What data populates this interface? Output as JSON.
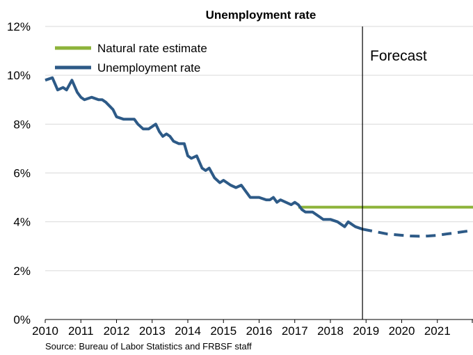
{
  "chart_data": {
    "type": "line",
    "title": "Unemployment rate",
    "source": "Source: Bureau of Labor Statistics and FRBSF staff",
    "annotation": "Forecast",
    "forecast_start": 2018.9,
    "xlim": [
      2010,
      2022
    ],
    "ylim": [
      0,
      12
    ],
    "x_ticks": [
      2010,
      2011,
      2012,
      2013,
      2014,
      2015,
      2016,
      2017,
      2018,
      2019,
      2020,
      2021
    ],
    "x_tick_labels": [
      "2010",
      "2011",
      "2012",
      "2013",
      "2014",
      "2015",
      "2016",
      "2017",
      "2018",
      "2019",
      "2020",
      "2021"
    ],
    "y_ticks": [
      0,
      2,
      4,
      6,
      8,
      10,
      12
    ],
    "y_tick_labels": [
      "0%",
      "2%",
      "4%",
      "6%",
      "8%",
      "10%",
      "12%"
    ],
    "grid": "horizontal",
    "legend_position": "top-left",
    "series": [
      {
        "name": "Natural rate estimate",
        "color": "#8db33a",
        "style": "solid",
        "x": [
          2017.1,
          2022
        ],
        "y": [
          4.6,
          4.6
        ]
      },
      {
        "name": "Unemployment rate",
        "color": "#2d5a87",
        "style": "solid",
        "x": [
          2010.0,
          2010.2,
          2010.35,
          2010.5,
          2010.6,
          2010.75,
          2010.9,
          2011.0,
          2011.1,
          2011.3,
          2011.5,
          2011.6,
          2011.7,
          2011.9,
          2012.0,
          2012.2,
          2012.35,
          2012.5,
          2012.6,
          2012.75,
          2012.9,
          2013.0,
          2013.1,
          2013.2,
          2013.3,
          2013.4,
          2013.5,
          2013.6,
          2013.75,
          2013.9,
          2014.0,
          2014.1,
          2014.25,
          2014.4,
          2014.5,
          2014.6,
          2014.75,
          2014.9,
          2015.0,
          2015.2,
          2015.35,
          2015.5,
          2015.6,
          2015.75,
          2015.9,
          2016.0,
          2016.2,
          2016.3,
          2016.4,
          2016.5,
          2016.6,
          2016.75,
          2016.9,
          2017.0,
          2017.1,
          2017.2,
          2017.3,
          2017.5,
          2017.6,
          2017.7,
          2017.8,
          2017.9,
          2018.0,
          2018.2,
          2018.3,
          2018.4,
          2018.5,
          2018.6,
          2018.7,
          2018.9
        ],
        "y": [
          9.8,
          9.9,
          9.4,
          9.5,
          9.4,
          9.8,
          9.3,
          9.1,
          9.0,
          9.1,
          9.0,
          9.0,
          8.9,
          8.6,
          8.3,
          8.2,
          8.2,
          8.2,
          8.0,
          7.8,
          7.8,
          7.9,
          8.0,
          7.7,
          7.5,
          7.6,
          7.5,
          7.3,
          7.2,
          7.2,
          6.7,
          6.6,
          6.7,
          6.2,
          6.1,
          6.2,
          5.8,
          5.6,
          5.7,
          5.5,
          5.4,
          5.5,
          5.3,
          5.0,
          5.0,
          5.0,
          4.9,
          4.9,
          5.0,
          4.8,
          4.9,
          4.8,
          4.7,
          4.8,
          4.7,
          4.5,
          4.4,
          4.4,
          4.3,
          4.2,
          4.1,
          4.1,
          4.1,
          4.0,
          3.9,
          3.8,
          4.0,
          3.9,
          3.8,
          3.7
        ]
      },
      {
        "name": "",
        "color": "#2d5a87",
        "style": "dashed",
        "x": [
          2018.9,
          2019.25,
          2019.6,
          2020.0,
          2020.25,
          2020.5,
          2020.75,
          2021.0,
          2021.25,
          2021.5,
          2021.75,
          2022.0
        ],
        "y": [
          3.7,
          3.6,
          3.5,
          3.45,
          3.42,
          3.41,
          3.42,
          3.45,
          3.5,
          3.55,
          3.6,
          3.65
        ]
      }
    ]
  }
}
